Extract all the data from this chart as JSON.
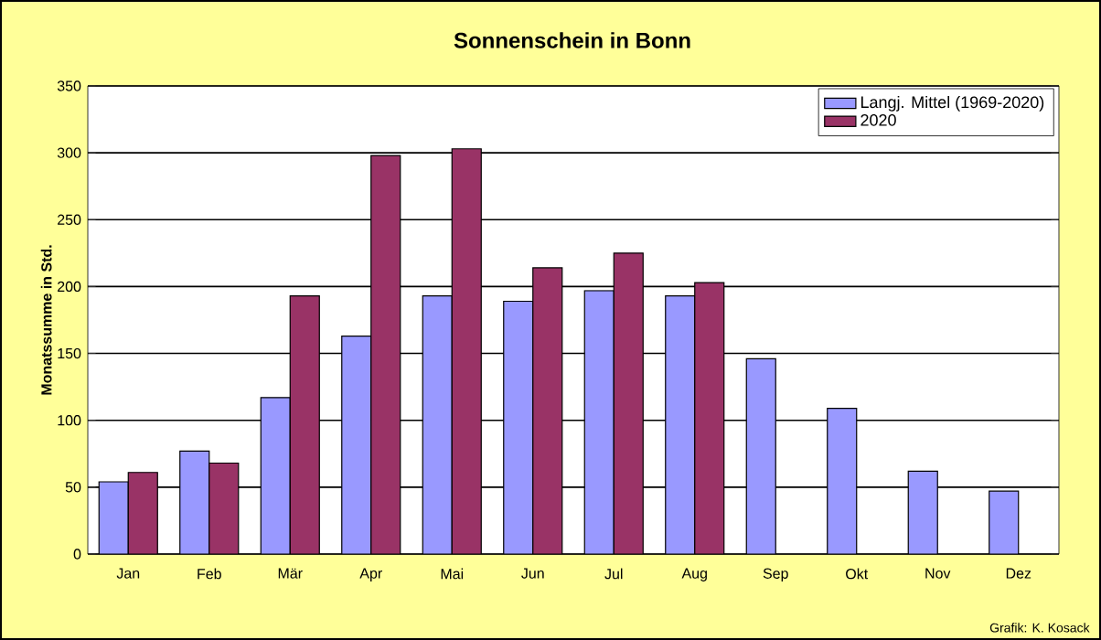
{
  "chart_data": {
    "type": "bar",
    "title": "Sonnenschein in Bonn",
    "ylabel": "Monatssumme in Std.",
    "categories": [
      "Jan",
      "Feb",
      "Mär",
      "Apr",
      "Mai",
      "Jun",
      "Jul",
      "Aug",
      "Sep",
      "Okt",
      "Nov",
      "Dez"
    ],
    "series": [
      {
        "name": "Langj. Mittel (1969-2020)",
        "color": "#9999ff",
        "values": [
          54,
          77,
          117,
          163,
          193,
          189,
          197,
          193,
          146,
          109,
          62,
          47
        ]
      },
      {
        "name": "2020",
        "color": "#993366",
        "values": [
          61,
          68,
          193,
          298,
          303,
          214,
          225,
          203,
          null,
          null,
          null,
          null
        ]
      }
    ],
    "ylim": [
      0,
      350
    ],
    "yticks": [
      0,
      50,
      100,
      150,
      200,
      250,
      300,
      350
    ],
    "grid": "y",
    "legend": "top right",
    "annotations": [
      "Grafik: K. Kosack"
    ]
  }
}
